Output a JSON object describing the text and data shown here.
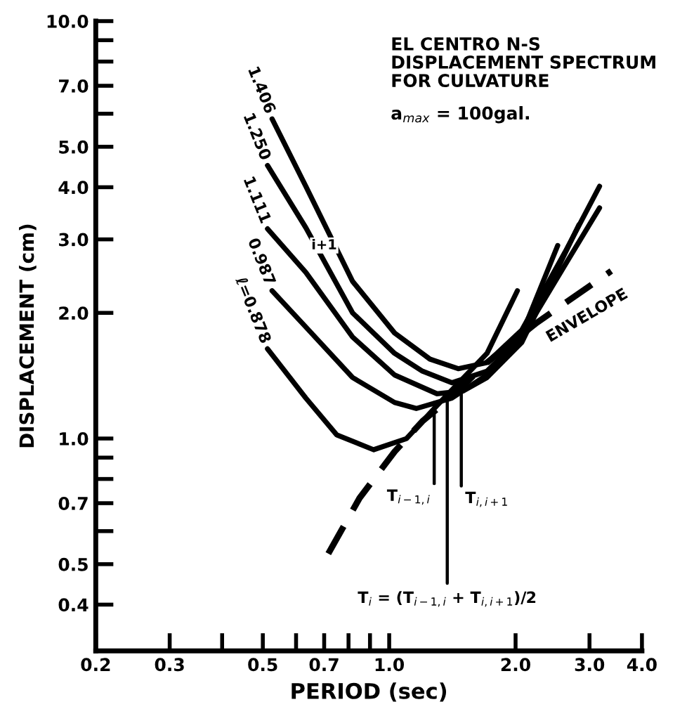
{
  "chart_data": {
    "type": "line",
    "title": "EL CENTRO N-S\nDISPLACEMENT SPECTRUM\nFOR CULVATURE",
    "subtitle": "a$_{max}$ = 100gal.",
    "xlabel": "PERIOD (sec)",
    "ylabel": "DISPLACEMENT (cm)",
    "log": "xy",
    "xlim": [
      0.2,
      4.0
    ],
    "ylim": [
      0.31,
      10.0
    ],
    "xticks": [
      {
        "value": 0.2,
        "label": "0.2"
      },
      {
        "value": 0.3,
        "label": "0.3"
      },
      {
        "value": 0.4,
        "label": null
      },
      {
        "value": 0.5,
        "label": "0.5"
      },
      {
        "value": 0.6,
        "label": null
      },
      {
        "value": 0.7,
        "label": "0.7"
      },
      {
        "value": 0.8,
        "label": null
      },
      {
        "value": 0.9,
        "label": null
      },
      {
        "value": 1.0,
        "label": "1.0"
      },
      {
        "value": 2.0,
        "label": "2.0"
      },
      {
        "value": 3.0,
        "label": "3.0"
      },
      {
        "value": 4.0,
        "label": "4.0"
      }
    ],
    "yticks": [
      {
        "value": 0.4,
        "label": "0.4"
      },
      {
        "value": 0.5,
        "label": "0.5"
      },
      {
        "value": 0.6,
        "label": null
      },
      {
        "value": 0.7,
        "label": "0.7"
      },
      {
        "value": 0.8,
        "label": null
      },
      {
        "value": 0.9,
        "label": null
      },
      {
        "value": 1.0,
        "label": "1.0"
      },
      {
        "value": 2.0,
        "label": "2.0"
      },
      {
        "value": 3.0,
        "label": "3.0"
      },
      {
        "value": 4.0,
        "label": "4.0"
      },
      {
        "value": 5.0,
        "label": "5.0"
      },
      {
        "value": 6.0,
        "label": null
      },
      {
        "value": 7.0,
        "label": "7.0"
      },
      {
        "value": 8.0,
        "label": null
      },
      {
        "value": 9.0,
        "label": null
      },
      {
        "value": 10.0,
        "label": "10.0"
      }
    ],
    "grid": false,
    "marker": "none",
    "series": [
      {
        "name": "1.406",
        "color": "#000000",
        "line_style": "solid",
        "x": [
          0.526,
          0.633,
          0.818,
          1.03,
          1.25,
          1.46,
          1.71,
          2.07,
          2.62,
          3.17
        ],
        "values": [
          5.83,
          4.02,
          2.38,
          1.79,
          1.55,
          1.47,
          1.52,
          1.82,
          2.79,
          4.02
        ]
      },
      {
        "name": "1.250",
        "color": "#000000",
        "line_style": "solid",
        "x": [
          0.513,
          0.633,
          0.818,
          1.03,
          1.2,
          1.41,
          1.71,
          2.07,
          2.62,
          3.17
        ],
        "values": [
          4.51,
          3.2,
          2.0,
          1.6,
          1.45,
          1.36,
          1.45,
          1.75,
          2.6,
          3.57
        ]
      },
      {
        "name": "1.111",
        "color": "#000000",
        "line_style": "solid",
        "x": [
          0.513,
          0.633,
          0.818,
          1.03,
          1.3,
          1.5,
          1.71,
          2.07,
          2.83
        ],
        "values": [
          3.18,
          2.5,
          1.75,
          1.42,
          1.28,
          1.3,
          1.4,
          1.7,
          3.25
        ]
      },
      {
        "name": "0.987",
        "color": "#000000",
        "line_style": "solid",
        "x": [
          0.526,
          0.633,
          0.818,
          1.03,
          1.16,
          1.41,
          1.71,
          2.07,
          2.52
        ],
        "values": [
          2.26,
          1.85,
          1.4,
          1.22,
          1.18,
          1.25,
          1.42,
          1.78,
          2.9
        ]
      },
      {
        "name": "ℓ=0.878",
        "color": "#000000",
        "line_style": "solid",
        "x": [
          0.513,
          0.633,
          0.75,
          0.918,
          1.1,
          1.3,
          1.71,
          2.02
        ],
        "values": [
          1.64,
          1.25,
          1.02,
          0.94,
          1.0,
          1.2,
          1.6,
          2.26
        ]
      },
      {
        "name": "ENVELOPE",
        "color": "#000000",
        "line_style": "dashed",
        "x": [
          0.716,
          0.85,
          1.03,
          1.2,
          1.41,
          1.71,
          2.24,
          3.38
        ],
        "values": [
          0.53,
          0.72,
          0.93,
          1.1,
          1.26,
          1.52,
          1.89,
          2.52
        ]
      },
      {
        "color": "#000000",
        "line_style": "solid",
        "x": [
          1.28,
          1.28
        ],
        "values": [
          1.22,
          0.78
        ]
      },
      {
        "color": "#000000",
        "line_style": "solid",
        "x": [
          1.485,
          1.485
        ],
        "values": [
          1.3,
          0.77
        ]
      },
      {
        "color": "#000000",
        "line_style": "solid",
        "x": [
          1.375,
          1.375
        ],
        "values": [
          1.26,
          0.45
        ]
      }
    ],
    "annotations": [
      {
        "text": "T$_{i−1,i}$",
        "x": 1.28,
        "y": 0.78
      },
      {
        "text": "T$_{i,i+1}$",
        "x": 1.485,
        "y": 0.77
      },
      {
        "text": "T$_{i}$ = (T$_{i−1,i}$ + T$_{i,i+1}$)/2",
        "x": 1.375,
        "y": 0.45
      },
      {
        "text": "i+1",
        "x": 0.7,
        "y": 2.9
      }
    ]
  }
}
